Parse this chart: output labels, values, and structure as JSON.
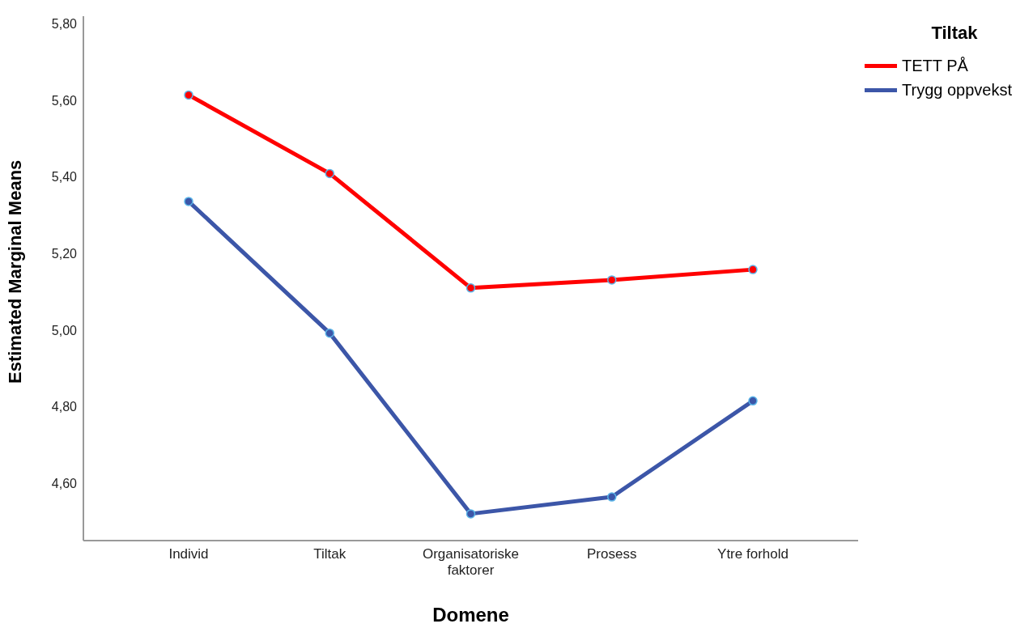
{
  "chart_data": {
    "type": "line",
    "xlabel": "Domene",
    "ylabel": "Estimated Marginal Means",
    "legend_title": "Tiltak",
    "categories": [
      "Individ",
      "Tiltak",
      "Organisatoriske faktorer",
      "Prosess",
      "Ytre forhold"
    ],
    "series": [
      {
        "name": "TETT PÅ",
        "color": "#ff0000",
        "values": [
          5.614,
          5.409,
          5.11,
          5.131,
          5.158
        ]
      },
      {
        "name": "Trygg oppvekst",
        "color": "#3c56a8",
        "values": [
          5.336,
          4.992,
          4.52,
          4.564,
          4.815
        ]
      }
    ],
    "ylim": [
      4.45,
      5.82
    ],
    "yticks": [
      {
        "value": 4.6,
        "label": "4,60"
      },
      {
        "value": 4.8,
        "label": "4,80"
      },
      {
        "value": 5.0,
        "label": "5,00"
      },
      {
        "value": 5.2,
        "label": "5,20"
      },
      {
        "value": 5.4,
        "label": "5,40"
      },
      {
        "value": 5.6,
        "label": "5,60"
      },
      {
        "value": 5.8,
        "label": "5,80"
      }
    ],
    "grid": false,
    "legend": "top right",
    "marker": "circle",
    "line_style": "solid"
  }
}
